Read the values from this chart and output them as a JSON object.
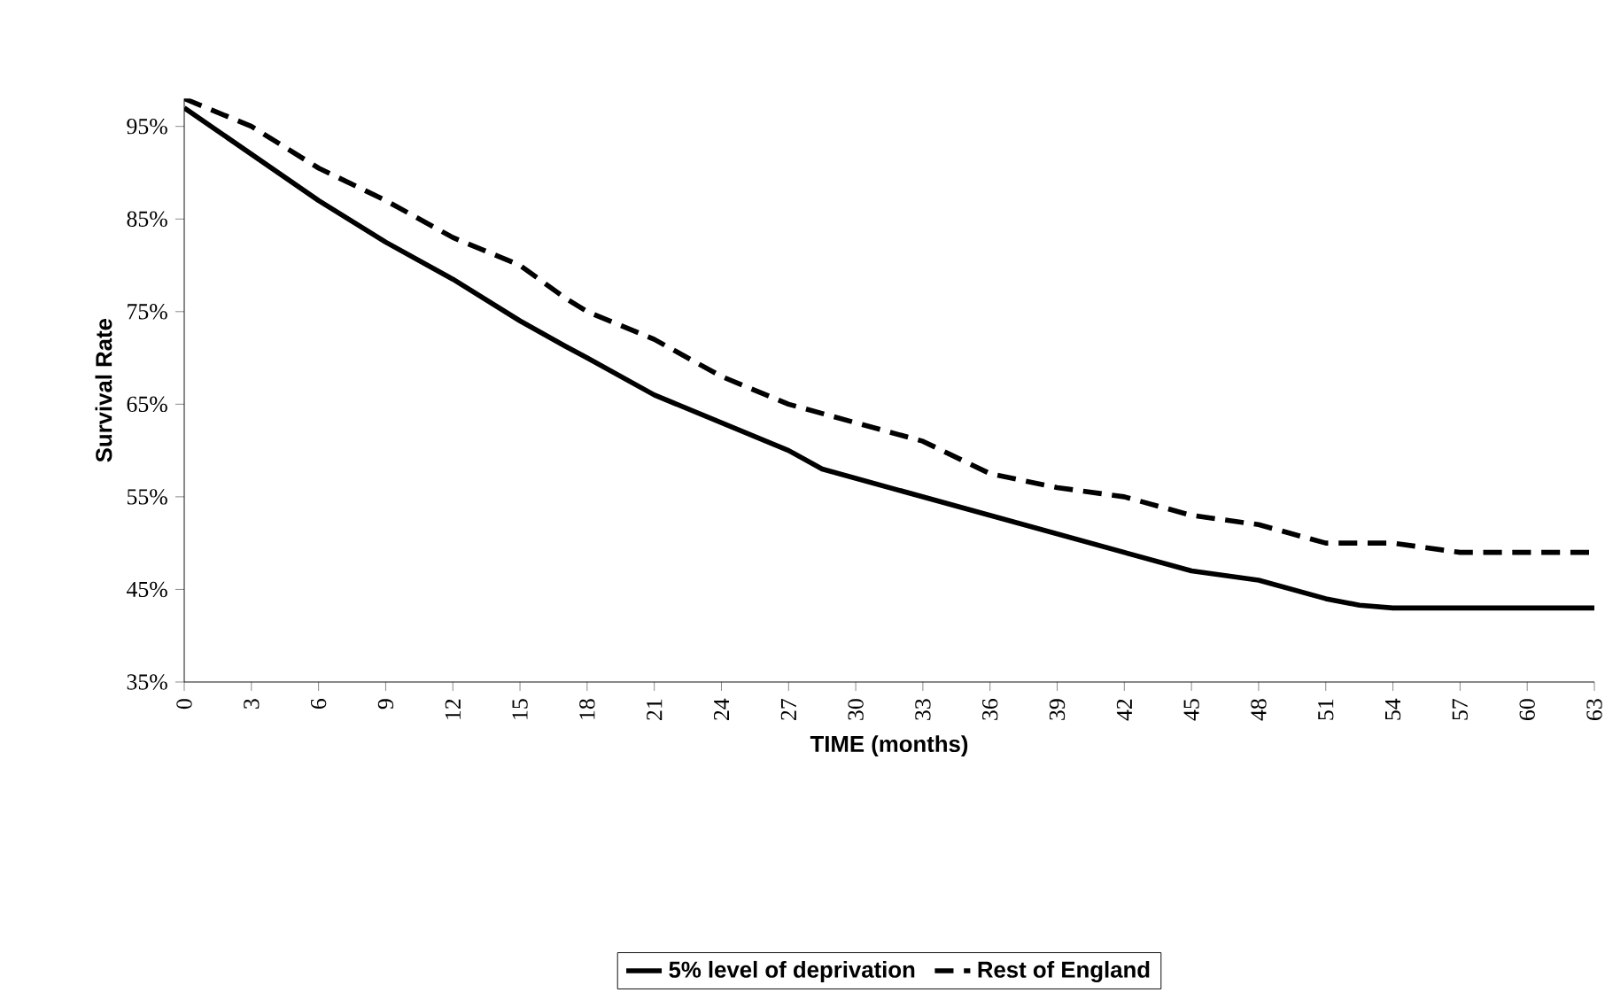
{
  "chart_data": {
    "type": "line",
    "xlabel": "TIME (months)",
    "ylabel": "Survival Rate",
    "x": [
      0,
      3,
      6,
      9,
      12,
      15,
      17,
      18,
      21,
      24,
      27,
      28.5,
      30,
      33,
      36,
      39,
      42,
      45,
      48,
      51,
      52.5,
      54,
      57,
      60,
      63
    ],
    "series": [
      {
        "name": "5% level of deprivation",
        "color": "#000000",
        "line_style": "solid",
        "values": [
          97,
          92,
          87,
          82.5,
          78.5,
          74,
          71.3,
          70,
          66,
          63,
          60,
          58,
          57,
          55,
          53,
          51,
          49,
          47,
          46,
          44,
          43.3,
          43,
          43,
          43,
          43
        ]
      },
      {
        "name": "Rest of England",
        "color": "#000000",
        "line_style": "dashed",
        "values": [
          98,
          95,
          90.5,
          87,
          83,
          80,
          76.5,
          75,
          72,
          68,
          65,
          64,
          63,
          61,
          57.5,
          56,
          55,
          53,
          52,
          50,
          50,
          50,
          49,
          49,
          49
        ]
      }
    ],
    "xlim": [
      0,
      63
    ],
    "xticks": [
      0,
      3,
      6,
      9,
      12,
      15,
      18,
      21,
      24,
      27,
      30,
      33,
      36,
      39,
      42,
      45,
      48,
      51,
      54,
      57,
      60,
      63
    ],
    "ylim": [
      35,
      98
    ],
    "yticks": [
      {
        "value": 35,
        "label": "35%"
      },
      {
        "value": 45,
        "label": "45%"
      },
      {
        "value": 55,
        "label": "55%"
      },
      {
        "value": 65,
        "label": "65%"
      },
      {
        "value": 75,
        "label": "75%"
      },
      {
        "value": 85,
        "label": "85%"
      },
      {
        "value": 95,
        "label": "95%"
      }
    ],
    "grid": false,
    "legend": "bottom",
    "marker": "none"
  }
}
